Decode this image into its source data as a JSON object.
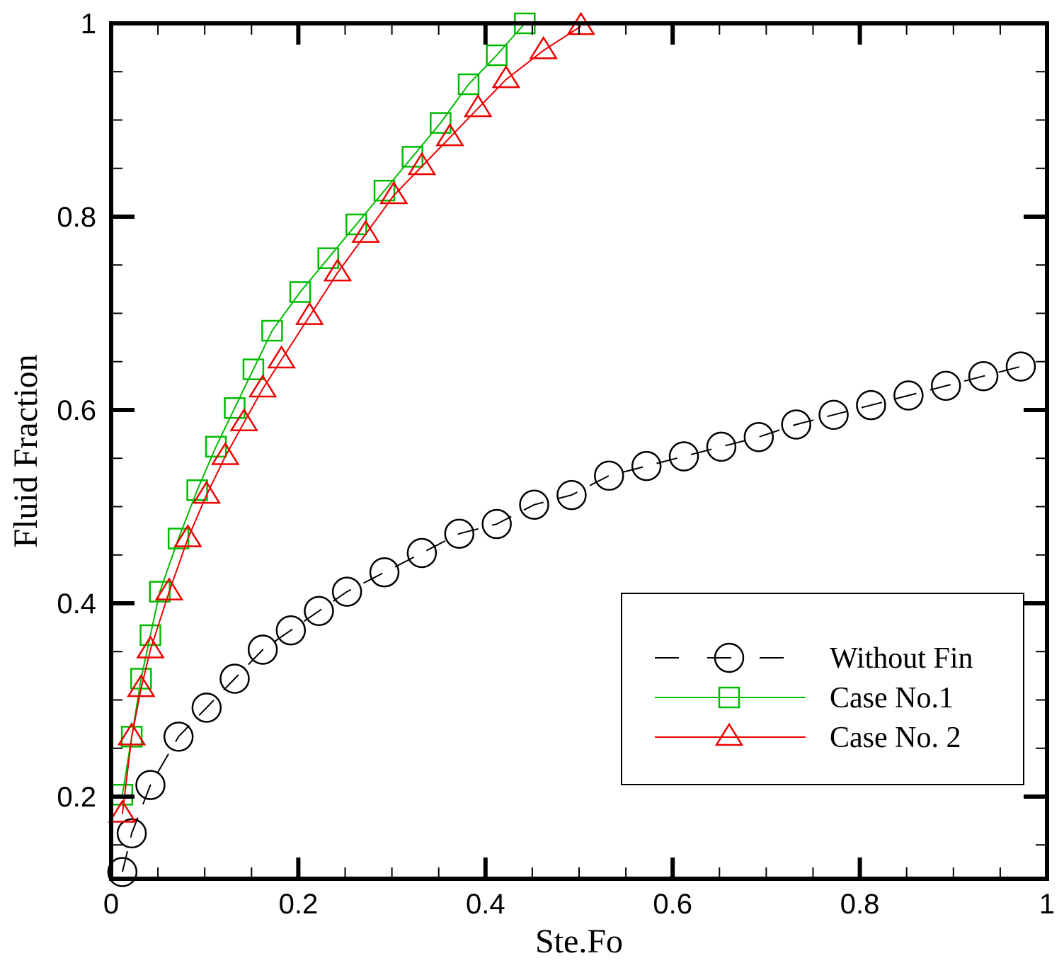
{
  "chart_data": {
    "type": "line",
    "title": "",
    "xlabel": "Ste.Fo",
    "ylabel": "Fluid Fraction",
    "xlim": [
      0,
      1
    ],
    "ylim": [
      0.115,
      1
    ],
    "grid": false,
    "legend_position": "bottom-right",
    "x_ticks": [
      0,
      0.2,
      0.4,
      0.6,
      0.8,
      1
    ],
    "x_tick_labels": [
      "0",
      "0.2",
      "0.4",
      "0.6",
      "0.8",
      "1"
    ],
    "y_ticks": [
      0.2,
      0.4,
      0.6,
      0.8,
      1
    ],
    "y_tick_labels": [
      "0.2",
      "0.4",
      "0.6",
      "0.8",
      "1"
    ],
    "series": [
      {
        "name": "Without Fin",
        "color": "#000000",
        "marker": "circle",
        "line_style": "dashed",
        "x": [
          0.012,
          0.022,
          0.042,
          0.072,
          0.102,
          0.132,
          0.162,
          0.192,
          0.222,
          0.252,
          0.292,
          0.332,
          0.372,
          0.412,
          0.452,
          0.492,
          0.532,
          0.572,
          0.612,
          0.652,
          0.692,
          0.732,
          0.772,
          0.812,
          0.852,
          0.892,
          0.932,
          0.972
        ],
        "y": [
          0.122,
          0.162,
          0.212,
          0.262,
          0.292,
          0.322,
          0.352,
          0.372,
          0.392,
          0.412,
          0.432,
          0.452,
          0.472,
          0.482,
          0.502,
          0.512,
          0.532,
          0.542,
          0.552,
          0.562,
          0.572,
          0.585,
          0.595,
          0.605,
          0.615,
          0.625,
          0.635,
          0.645
        ]
      },
      {
        "name": "Case No.1",
        "color": "#00bb00",
        "marker": "square",
        "line_style": "solid",
        "x": [
          0.012,
          0.022,
          0.032,
          0.042,
          0.052,
          0.072,
          0.092,
          0.112,
          0.132,
          0.152,
          0.172,
          0.202,
          0.232,
          0.262,
          0.292,
          0.322,
          0.352,
          0.382,
          0.412,
          0.442
        ],
        "y": [
          0.202,
          0.262,
          0.322,
          0.367,
          0.412,
          0.467,
          0.517,
          0.562,
          0.602,
          0.642,
          0.682,
          0.722,
          0.757,
          0.792,
          0.827,
          0.862,
          0.897,
          0.937,
          0.967,
          1.0
        ]
      },
      {
        "name": "Case No. 2",
        "color": "#ee0000",
        "marker": "triangle",
        "line_style": "solid",
        "x": [
          0.012,
          0.022,
          0.032,
          0.042,
          0.062,
          0.082,
          0.102,
          0.122,
          0.142,
          0.162,
          0.182,
          0.212,
          0.242,
          0.272,
          0.302,
          0.332,
          0.362,
          0.392,
          0.422,
          0.462,
          0.502
        ],
        "y": [
          0.182,
          0.262,
          0.312,
          0.352,
          0.412,
          0.467,
          0.512,
          0.552,
          0.587,
          0.622,
          0.652,
          0.697,
          0.742,
          0.782,
          0.822,
          0.852,
          0.882,
          0.912,
          0.942,
          0.972,
          0.997
        ]
      }
    ]
  }
}
